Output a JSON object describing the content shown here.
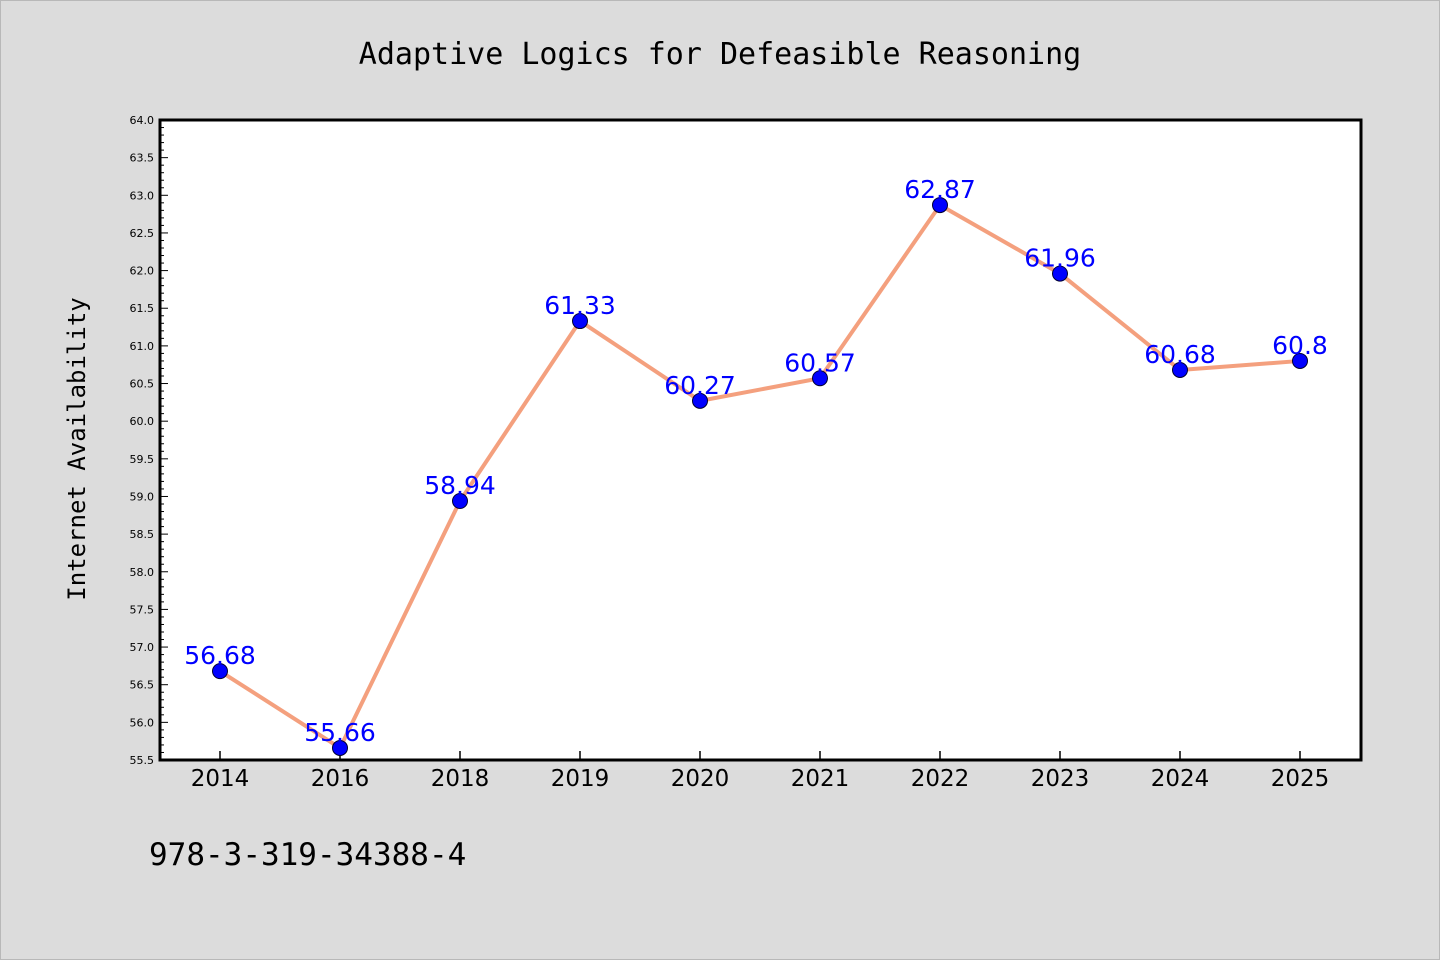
{
  "chart_data": {
    "type": "line",
    "title": "Adaptive Logics for Defeasible Reasoning",
    "xlabel": "",
    "ylabel": "Internet Availability",
    "categories": [
      "2014",
      "2016",
      "2018",
      "2019",
      "2020",
      "2021",
      "2022",
      "2023",
      "2024",
      "2025"
    ],
    "values": [
      56.68,
      55.66,
      58.94,
      61.33,
      60.27,
      60.57,
      62.87,
      61.96,
      60.68,
      60.8
    ],
    "data_labels": [
      "56.68",
      "55.66",
      "58.94",
      "61.33",
      "60.27",
      "60.57",
      "62.87",
      "61.96",
      "60.68",
      "60.8"
    ],
    "ylim": [
      55.5,
      64.0
    ],
    "yticks": [
      "55.5",
      "56.0",
      "56.5",
      "57.0",
      "57.5",
      "58.0",
      "58.5",
      "59.0",
      "59.5",
      "60.0",
      "60.5",
      "61.0",
      "61.5",
      "62.0",
      "62.5",
      "63.0",
      "63.5",
      "64.0"
    ],
    "grid": false,
    "legend": "none",
    "colors": {
      "line": "#f4a07e",
      "marker": "#0000ff",
      "label": "#0000ff",
      "background": "#dcdcdc",
      "plot_background": "#ffffff"
    }
  },
  "footer": {
    "isbn": "978-3-319-34388-4"
  }
}
